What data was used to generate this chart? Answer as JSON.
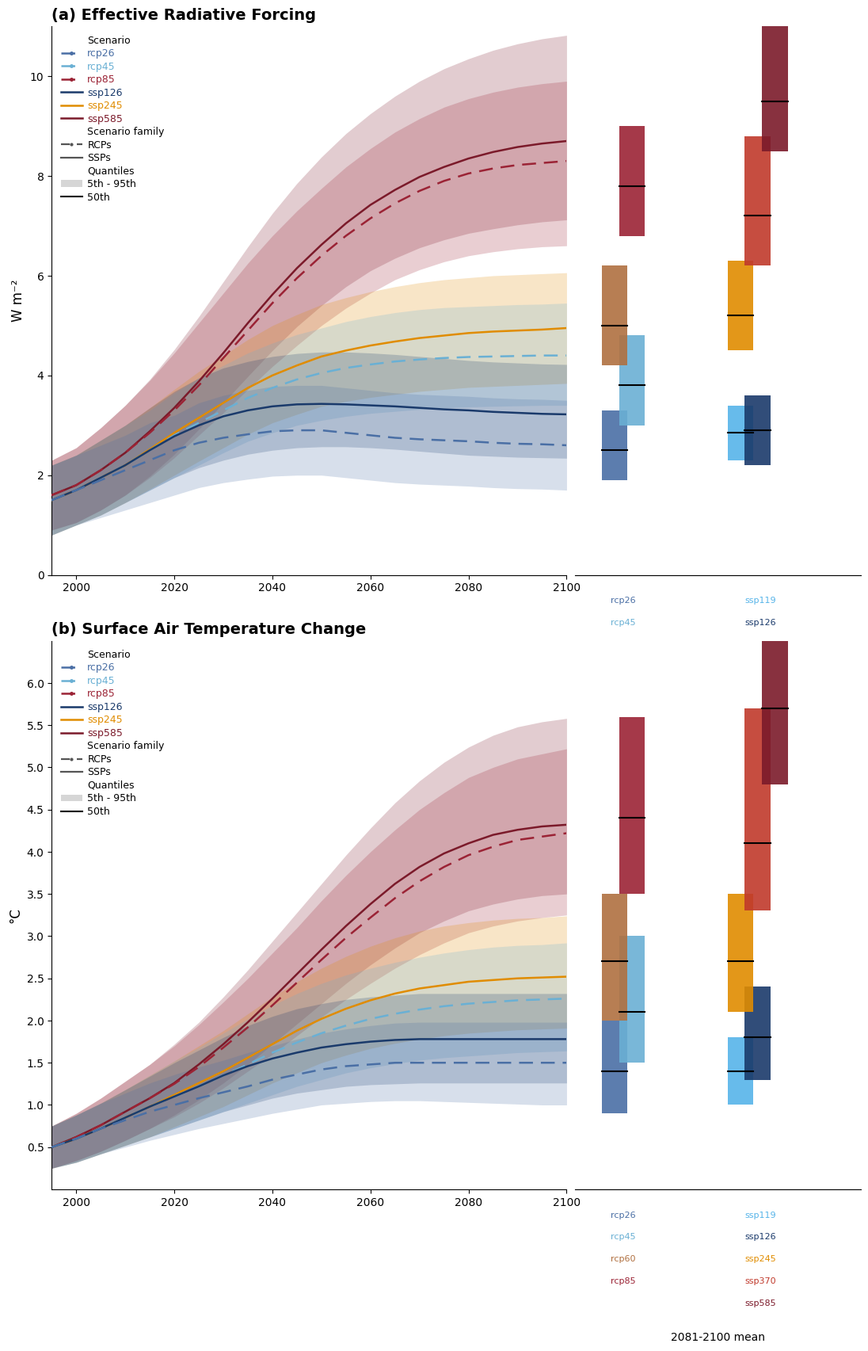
{
  "panel_a_title": "(a) Effective Radiative Forcing",
  "panel_b_title": "(b) Surface Air Temperature Change",
  "ylabel_a": "W m⁻²",
  "ylabel_b": "°C",
  "colors": {
    "rcp26": "#4a6fa5",
    "rcp45": "#6ab0d4",
    "rcp60": "#b07040",
    "rcp85": "#9b2335",
    "ssp119": "#56b4e9",
    "ssp126": "#1a3a6b",
    "ssp245": "#e08c00",
    "ssp370": "#c0392b",
    "ssp585": "#7b1a2a"
  },
  "years_erf": [
    1995,
    2000,
    2005,
    2010,
    2015,
    2020,
    2025,
    2030,
    2035,
    2040,
    2045,
    2050,
    2055,
    2060,
    2065,
    2070,
    2075,
    2080,
    2085,
    2090,
    2095,
    2100
  ],
  "years_temp": [
    1995,
    2000,
    2005,
    2010,
    2015,
    2020,
    2025,
    2030,
    2035,
    2040,
    2045,
    2050,
    2055,
    2060,
    2065,
    2070,
    2075,
    2080,
    2085,
    2090,
    2095,
    2100
  ],
  "erf_scenarios": {
    "rcp26": {
      "color": "#4a6fa5",
      "linestyle": "dashed",
      "median": [
        1.5,
        1.7,
        1.9,
        2.1,
        2.3,
        2.5,
        2.65,
        2.75,
        2.82,
        2.88,
        2.9,
        2.9,
        2.85,
        2.8,
        2.75,
        2.72,
        2.7,
        2.68,
        2.65,
        2.63,
        2.62,
        2.6
      ],
      "p5": [
        0.8,
        1.0,
        1.15,
        1.3,
        1.45,
        1.6,
        1.75,
        1.85,
        1.92,
        1.98,
        2.0,
        2.0,
        1.95,
        1.9,
        1.85,
        1.82,
        1.8,
        1.78,
        1.75,
        1.73,
        1.72,
        1.7
      ],
      "p95": [
        2.2,
        2.4,
        2.6,
        2.8,
        3.05,
        3.2,
        3.45,
        3.6,
        3.7,
        3.78,
        3.8,
        3.8,
        3.75,
        3.7,
        3.65,
        3.62,
        3.6,
        3.58,
        3.55,
        3.53,
        3.52,
        3.5
      ]
    },
    "rcp45": {
      "color": "#6ab0d4",
      "linestyle": "dashed",
      "median": [
        1.5,
        1.7,
        1.95,
        2.2,
        2.5,
        2.8,
        3.05,
        3.3,
        3.55,
        3.75,
        3.92,
        4.05,
        4.15,
        4.22,
        4.28,
        4.32,
        4.35,
        4.37,
        4.38,
        4.39,
        4.4,
        4.4
      ],
      "p5": [
        0.8,
        1.0,
        1.2,
        1.45,
        1.7,
        1.95,
        2.2,
        2.45,
        2.68,
        2.85,
        3.0,
        3.1,
        3.18,
        3.24,
        3.28,
        3.32,
        3.35,
        3.37,
        3.38,
        3.39,
        3.4,
        3.4
      ],
      "p95": [
        2.2,
        2.4,
        2.7,
        3.0,
        3.3,
        3.65,
        3.95,
        4.2,
        4.45,
        4.65,
        4.82,
        4.95,
        5.08,
        5.18,
        5.26,
        5.32,
        5.36,
        5.38,
        5.4,
        5.42,
        5.43,
        5.45
      ]
    },
    "rcp85": {
      "color": "#9b2335",
      "linestyle": "dashed",
      "median": [
        1.6,
        1.8,
        2.1,
        2.45,
        2.85,
        3.3,
        3.8,
        4.35,
        4.9,
        5.45,
        5.95,
        6.4,
        6.8,
        7.15,
        7.45,
        7.7,
        7.9,
        8.05,
        8.15,
        8.22,
        8.26,
        8.3
      ],
      "p5": [
        0.9,
        1.05,
        1.3,
        1.6,
        1.95,
        2.35,
        2.8,
        3.25,
        3.72,
        4.18,
        4.6,
        5.0,
        5.35,
        5.65,
        5.92,
        6.12,
        6.28,
        6.4,
        6.48,
        6.54,
        6.58,
        6.6
      ],
      "p95": [
        2.3,
        2.55,
        2.95,
        3.4,
        3.9,
        4.45,
        5.05,
        5.65,
        6.25,
        6.8,
        7.3,
        7.75,
        8.18,
        8.55,
        8.88,
        9.15,
        9.38,
        9.55,
        9.68,
        9.78,
        9.85,
        9.9
      ]
    },
    "ssp126": {
      "color": "#1a3a6b",
      "linestyle": "solid",
      "median": [
        1.5,
        1.7,
        1.95,
        2.2,
        2.5,
        2.78,
        3.0,
        3.18,
        3.3,
        3.38,
        3.42,
        3.43,
        3.42,
        3.4,
        3.38,
        3.35,
        3.32,
        3.3,
        3.27,
        3.25,
        3.23,
        3.22
      ],
      "p5": [
        0.8,
        1.0,
        1.2,
        1.45,
        1.7,
        1.95,
        2.15,
        2.3,
        2.42,
        2.5,
        2.55,
        2.57,
        2.57,
        2.55,
        2.52,
        2.48,
        2.44,
        2.4,
        2.38,
        2.36,
        2.35,
        2.34
      ],
      "p95": [
        2.2,
        2.4,
        2.7,
        3.0,
        3.35,
        3.68,
        3.95,
        4.15,
        4.28,
        4.38,
        4.44,
        4.47,
        4.47,
        4.45,
        4.42,
        4.38,
        4.34,
        4.3,
        4.27,
        4.25,
        4.23,
        4.22
      ]
    },
    "ssp245": {
      "color": "#e08c00",
      "linestyle": "solid",
      "median": [
        1.5,
        1.7,
        1.95,
        2.2,
        2.52,
        2.85,
        3.15,
        3.45,
        3.75,
        4.0,
        4.2,
        4.38,
        4.5,
        4.6,
        4.68,
        4.75,
        4.8,
        4.85,
        4.88,
        4.9,
        4.92,
        4.95
      ],
      "p5": [
        0.8,
        1.0,
        1.2,
        1.45,
        1.72,
        2.0,
        2.28,
        2.55,
        2.82,
        3.05,
        3.22,
        3.38,
        3.48,
        3.56,
        3.62,
        3.68,
        3.72,
        3.76,
        3.78,
        3.8,
        3.82,
        3.84
      ],
      "p95": [
        2.2,
        2.4,
        2.7,
        3.0,
        3.35,
        3.72,
        4.08,
        4.4,
        4.72,
        5.0,
        5.22,
        5.42,
        5.56,
        5.68,
        5.78,
        5.86,
        5.92,
        5.96,
        6.0,
        6.02,
        6.04,
        6.06
      ]
    },
    "ssp585": {
      "color": "#7b1a2a",
      "linestyle": "solid",
      "median": [
        1.6,
        1.8,
        2.1,
        2.45,
        2.88,
        3.35,
        3.88,
        4.45,
        5.05,
        5.62,
        6.15,
        6.62,
        7.05,
        7.42,
        7.72,
        7.98,
        8.18,
        8.35,
        8.48,
        8.58,
        8.65,
        8.7
      ],
      "p5": [
        0.9,
        1.05,
        1.3,
        1.6,
        1.98,
        2.42,
        2.92,
        3.45,
        3.98,
        4.5,
        4.98,
        5.4,
        5.78,
        6.1,
        6.35,
        6.56,
        6.72,
        6.85,
        6.94,
        7.02,
        7.08,
        7.12
      ],
      "p95": [
        2.3,
        2.55,
        2.95,
        3.4,
        3.92,
        4.52,
        5.18,
        5.88,
        6.58,
        7.25,
        7.85,
        8.38,
        8.85,
        9.25,
        9.6,
        9.9,
        10.15,
        10.35,
        10.52,
        10.65,
        10.75,
        10.82
      ]
    }
  },
  "temp_scenarios": {
    "rcp26": {
      "color": "#4a6fa5",
      "linestyle": "dashed",
      "median": [
        0.5,
        0.6,
        0.72,
        0.82,
        0.92,
        1.0,
        1.08,
        1.15,
        1.22,
        1.3,
        1.36,
        1.42,
        1.46,
        1.48,
        1.5,
        1.5,
        1.5,
        1.5,
        1.5,
        1.5,
        1.5,
        1.5
      ],
      "p5": [
        0.25,
        0.32,
        0.42,
        0.5,
        0.58,
        0.65,
        0.72,
        0.78,
        0.84,
        0.9,
        0.95,
        1.0,
        1.02,
        1.04,
        1.05,
        1.05,
        1.04,
        1.03,
        1.02,
        1.01,
        1.0,
        1.0
      ],
      "p95": [
        0.75,
        0.88,
        1.02,
        1.14,
        1.26,
        1.36,
        1.45,
        1.53,
        1.62,
        1.7,
        1.78,
        1.85,
        1.9,
        1.94,
        1.97,
        1.98,
        1.98,
        1.98,
        1.98,
        1.98,
        1.98,
        1.98
      ]
    },
    "rcp45": {
      "color": "#6ab0d4",
      "linestyle": "dashed",
      "median": [
        0.5,
        0.6,
        0.72,
        0.85,
        0.98,
        1.1,
        1.22,
        1.35,
        1.48,
        1.62,
        1.74,
        1.85,
        1.94,
        2.02,
        2.08,
        2.13,
        2.17,
        2.2,
        2.22,
        2.24,
        2.25,
        2.26
      ],
      "p5": [
        0.25,
        0.32,
        0.42,
        0.52,
        0.62,
        0.72,
        0.82,
        0.92,
        1.02,
        1.12,
        1.22,
        1.3,
        1.38,
        1.44,
        1.49,
        1.53,
        1.56,
        1.58,
        1.6,
        1.62,
        1.63,
        1.64
      ],
      "p95": [
        0.75,
        0.88,
        1.02,
        1.18,
        1.35,
        1.52,
        1.68,
        1.85,
        2.02,
        2.18,
        2.32,
        2.44,
        2.54,
        2.62,
        2.69,
        2.75,
        2.8,
        2.84,
        2.87,
        2.89,
        2.9,
        2.92
      ]
    },
    "rcp85": {
      "color": "#9b2335",
      "linestyle": "dashed",
      "median": [
        0.5,
        0.62,
        0.76,
        0.92,
        1.08,
        1.25,
        1.45,
        1.68,
        1.92,
        2.18,
        2.45,
        2.72,
        2.98,
        3.22,
        3.45,
        3.65,
        3.82,
        3.96,
        4.06,
        4.14,
        4.18,
        4.22
      ],
      "p5": [
        0.25,
        0.34,
        0.45,
        0.58,
        0.72,
        0.86,
        1.02,
        1.2,
        1.4,
        1.6,
        1.82,
        2.04,
        2.25,
        2.44,
        2.62,
        2.78,
        2.92,
        3.04,
        3.12,
        3.18,
        3.22,
        3.25
      ],
      "p95": [
        0.75,
        0.9,
        1.08,
        1.28,
        1.48,
        1.7,
        1.95,
        2.22,
        2.5,
        2.8,
        3.1,
        3.42,
        3.72,
        4.0,
        4.26,
        4.5,
        4.7,
        4.88,
        5.0,
        5.1,
        5.16,
        5.22
      ]
    },
    "ssp126": {
      "color": "#1a3a6b",
      "linestyle": "solid",
      "median": [
        0.5,
        0.6,
        0.72,
        0.85,
        0.98,
        1.1,
        1.22,
        1.35,
        1.46,
        1.55,
        1.62,
        1.68,
        1.72,
        1.75,
        1.77,
        1.78,
        1.78,
        1.78,
        1.78,
        1.78,
        1.78,
        1.78
      ],
      "p5": [
        0.25,
        0.32,
        0.42,
        0.52,
        0.62,
        0.72,
        0.82,
        0.92,
        1.0,
        1.08,
        1.14,
        1.18,
        1.22,
        1.24,
        1.25,
        1.26,
        1.26,
        1.26,
        1.26,
        1.26,
        1.26,
        1.26
      ],
      "p95": [
        0.75,
        0.88,
        1.02,
        1.18,
        1.34,
        1.5,
        1.65,
        1.8,
        1.94,
        2.05,
        2.14,
        2.2,
        2.25,
        2.28,
        2.3,
        2.32,
        2.32,
        2.32,
        2.32,
        2.32,
        2.32,
        2.32
      ]
    },
    "ssp245": {
      "color": "#e08c00",
      "linestyle": "solid",
      "median": [
        0.5,
        0.6,
        0.72,
        0.85,
        0.98,
        1.12,
        1.26,
        1.4,
        1.56,
        1.72,
        1.88,
        2.02,
        2.14,
        2.24,
        2.32,
        2.38,
        2.42,
        2.46,
        2.48,
        2.5,
        2.51,
        2.52
      ],
      "p5": [
        0.25,
        0.32,
        0.42,
        0.52,
        0.62,
        0.74,
        0.86,
        0.98,
        1.12,
        1.26,
        1.38,
        1.5,
        1.59,
        1.67,
        1.73,
        1.78,
        1.82,
        1.85,
        1.87,
        1.89,
        1.9,
        1.91
      ],
      "p95": [
        0.75,
        0.88,
        1.02,
        1.18,
        1.35,
        1.52,
        1.7,
        1.88,
        2.08,
        2.28,
        2.46,
        2.62,
        2.76,
        2.88,
        2.98,
        3.06,
        3.12,
        3.16,
        3.19,
        3.21,
        3.22,
        3.24
      ]
    },
    "ssp585": {
      "color": "#7b1a2a",
      "linestyle": "solid",
      "median": [
        0.5,
        0.62,
        0.76,
        0.92,
        1.08,
        1.26,
        1.48,
        1.72,
        1.98,
        2.26,
        2.55,
        2.84,
        3.12,
        3.38,
        3.62,
        3.82,
        3.98,
        4.1,
        4.2,
        4.26,
        4.3,
        4.32
      ],
      "p5": [
        0.25,
        0.34,
        0.45,
        0.58,
        0.72,
        0.88,
        1.06,
        1.26,
        1.48,
        1.72,
        1.96,
        2.2,
        2.44,
        2.66,
        2.86,
        3.04,
        3.18,
        3.3,
        3.38,
        3.44,
        3.48,
        3.5
      ],
      "p95": [
        0.75,
        0.9,
        1.08,
        1.28,
        1.48,
        1.72,
        1.98,
        2.28,
        2.6,
        2.94,
        3.28,
        3.62,
        3.96,
        4.28,
        4.58,
        4.84,
        5.06,
        5.24,
        5.38,
        5.48,
        5.54,
        5.58
      ]
    }
  },
  "erf_bars": {
    "rcp26": {
      "color": "#4a6fa5",
      "p5": 1.9,
      "p95": 3.3,
      "median": 2.5
    },
    "rcp45": {
      "color": "#6ab0d4",
      "p5": 3.0,
      "p95": 4.8,
      "median": 3.8
    },
    "rcp60": {
      "color": "#b07040",
      "p5": 4.2,
      "p95": 6.2,
      "median": 5.0
    },
    "rcp85": {
      "color": "#9b2335",
      "p5": 6.8,
      "p95": 9.0,
      "median": 7.8
    },
    "ssp119": {
      "color": "#56b4e9",
      "p5": 2.3,
      "p95": 3.4,
      "median": 2.85
    },
    "ssp126": {
      "color": "#1a3a6b",
      "p5": 2.2,
      "p95": 3.6,
      "median": 2.9
    },
    "ssp245": {
      "color": "#e08c00",
      "p5": 4.5,
      "p95": 6.3,
      "median": 5.2
    },
    "ssp370": {
      "color": "#c0392b",
      "p5": 6.2,
      "p95": 8.8,
      "median": 7.2
    },
    "ssp585": {
      "color": "#7b1a2a",
      "p5": 8.5,
      "p95": 11.2,
      "median": 9.5
    }
  },
  "temp_bars": {
    "rcp26": {
      "color": "#4a6fa5",
      "p5": 0.9,
      "p95": 2.0,
      "median": 1.4
    },
    "rcp45": {
      "color": "#6ab0d4",
      "p5": 1.5,
      "p95": 3.0,
      "median": 2.1
    },
    "rcp60": {
      "color": "#b07040",
      "p5": 2.0,
      "p95": 3.5,
      "median": 2.7
    },
    "rcp85": {
      "color": "#9b2335",
      "p5": 3.5,
      "p95": 5.6,
      "median": 4.4
    },
    "ssp119": {
      "color": "#56b4e9",
      "p5": 1.0,
      "p95": 1.8,
      "median": 1.4
    },
    "ssp126": {
      "color": "#1a3a6b",
      "p5": 1.3,
      "p95": 2.4,
      "median": 1.8
    },
    "ssp245": {
      "color": "#e08c00",
      "p5": 2.1,
      "p95": 3.5,
      "median": 2.7
    },
    "ssp370": {
      "color": "#c0392b",
      "p5": 3.3,
      "p95": 5.7,
      "median": 4.1
    },
    "ssp585": {
      "color": "#7b1a2a",
      "p5": 4.8,
      "p95": 7.0,
      "median": 5.7
    }
  },
  "erf_ylim": [
    0,
    11
  ],
  "temp_ylim": [
    0.0,
    6.5
  ],
  "erf_yticks": [
    0,
    2,
    4,
    6,
    8,
    10
  ],
  "temp_yticks": [
    0.5,
    1.0,
    1.5,
    2.0,
    2.5,
    3.0,
    3.5,
    4.0,
    4.5,
    5.0,
    5.5,
    6.0
  ]
}
